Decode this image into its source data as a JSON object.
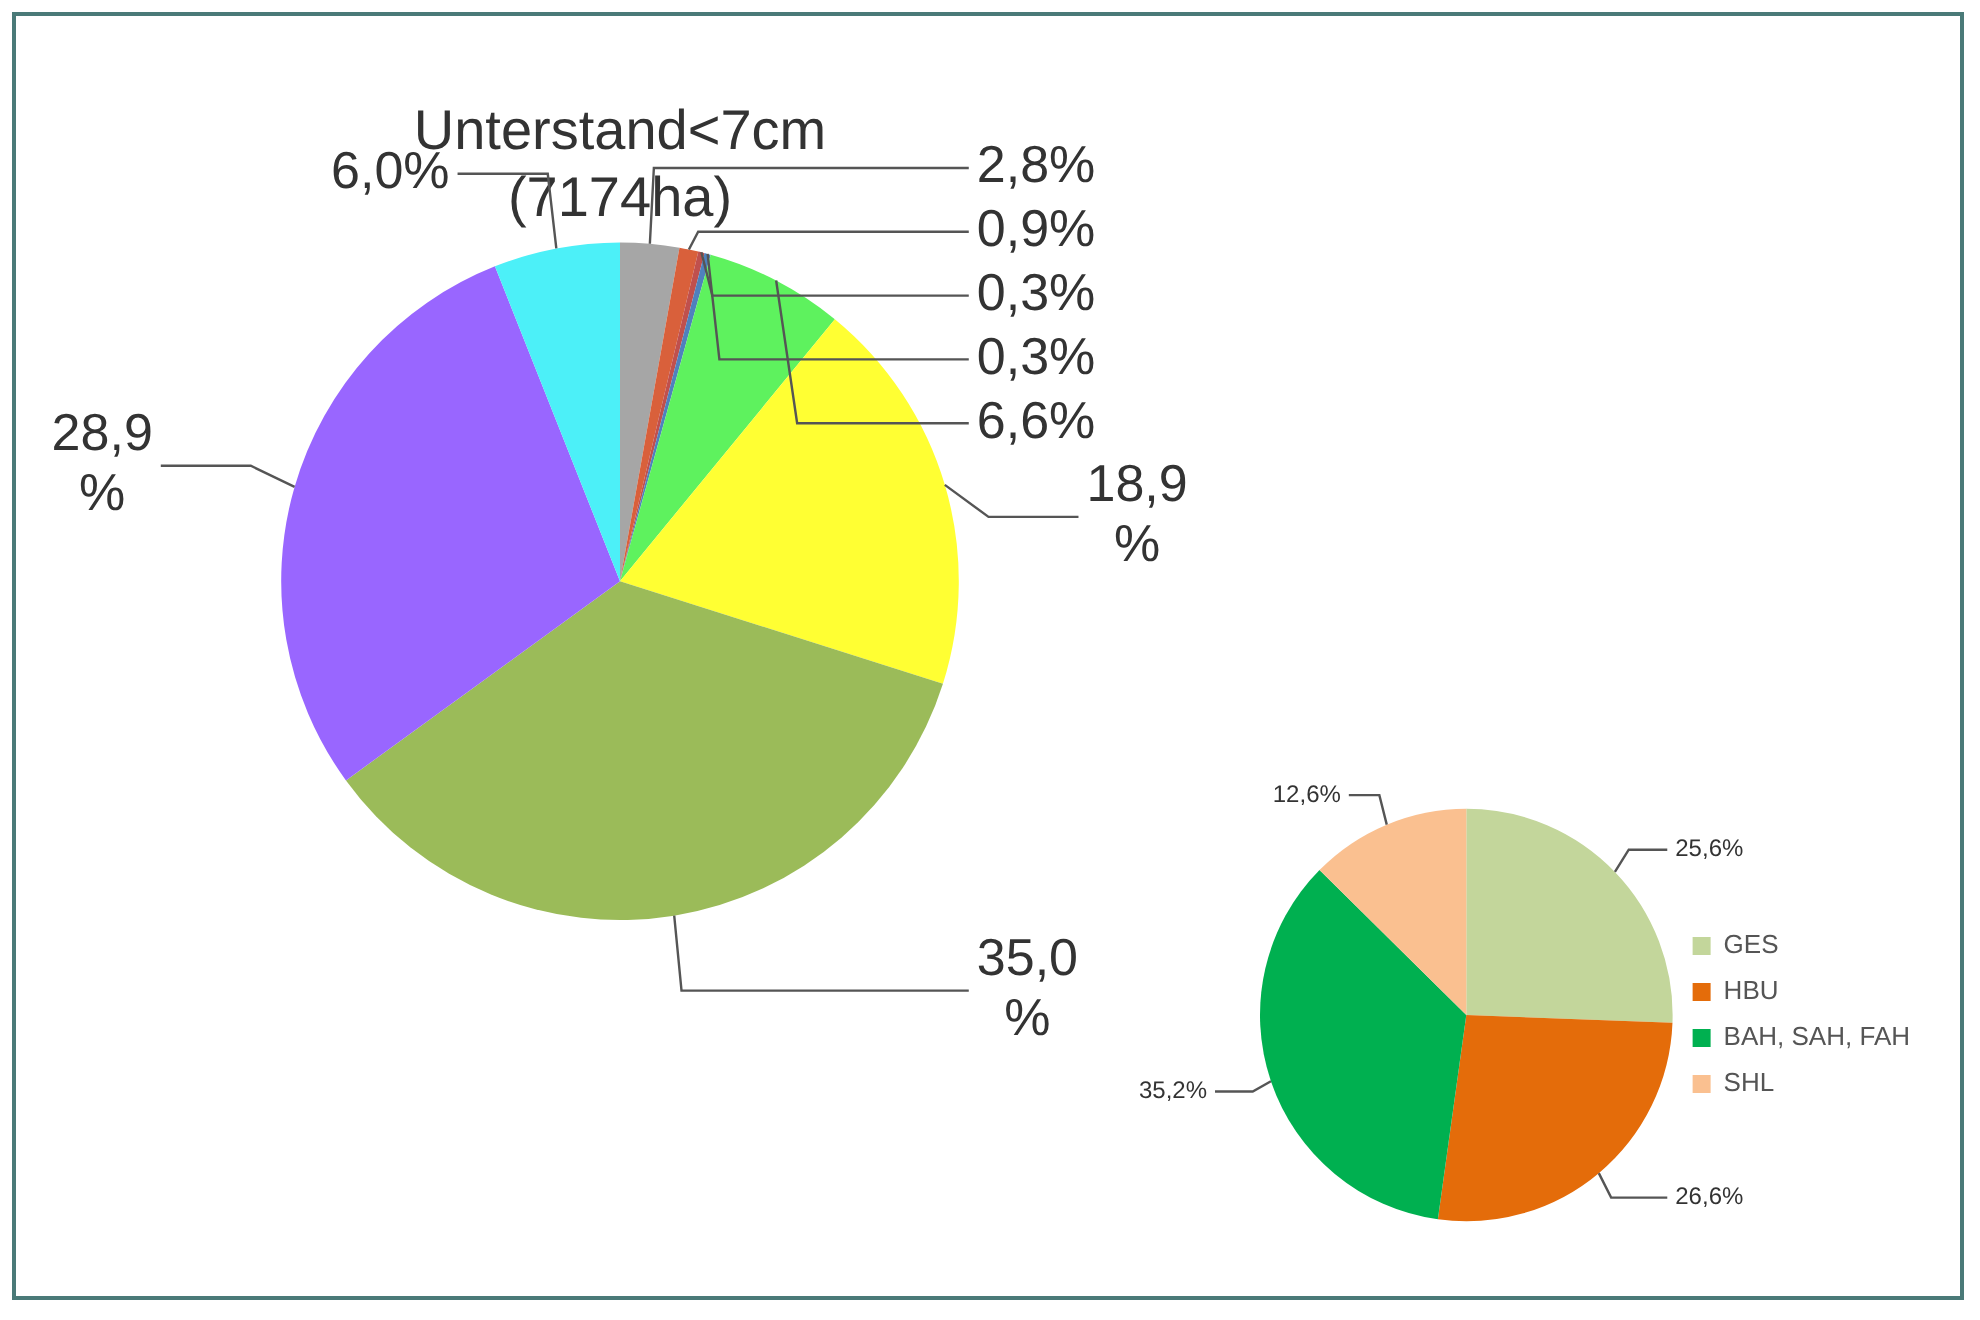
{
  "chart_data": [
    {
      "type": "pie",
      "title": "Unterstand<7cm\n(7174ha)",
      "categories": [
        null,
        null,
        null,
        null,
        null,
        null,
        null,
        null,
        null
      ],
      "values": [
        2.8,
        0.9,
        0.3,
        0.3,
        6.6,
        18.9,
        35.0,
        28.9,
        6.0
      ],
      "colors": [
        "#a6a6a6",
        "#d9603b",
        "#c0504d",
        "#4f81bd",
        "#5ef25e",
        "#ffff33",
        "#9bbb59",
        "#9966ff",
        "#4cf0f8"
      ],
      "value_labels": [
        "2,8%",
        "0,9%",
        "0,3%",
        "0,3%",
        "6,6%",
        "18,9\n%",
        "35,0\n%",
        "28,9\n%",
        "6,0%"
      ],
      "legend": false
    },
    {
      "type": "pie",
      "categories": [
        "GES",
        "HBU",
        "BAH, SAH, FAH",
        "SHL"
      ],
      "values": [
        25.6,
        26.6,
        35.2,
        12.6
      ],
      "colors": [
        "#c3d69b",
        "#e46c0a",
        "#00b050",
        "#fac090"
      ],
      "value_labels": [
        "25,6%",
        "26,6%",
        "35,2%",
        "12,6%"
      ],
      "legend": "right"
    }
  ]
}
